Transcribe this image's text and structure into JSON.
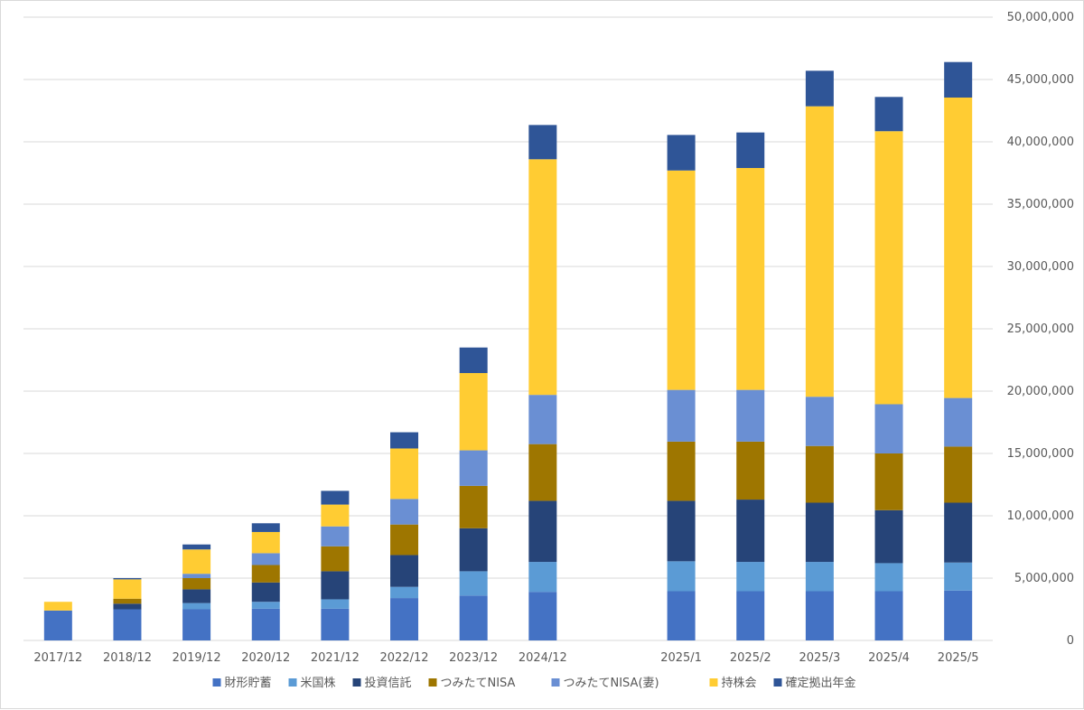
{
  "chart_data": {
    "type": "bar",
    "stacked": true,
    "categories": [
      "2017/12",
      "2018/12",
      "2019/12",
      "2020/12",
      "2021/12",
      "2022/12",
      "2023/12",
      "2024/12",
      "",
      "2025/1",
      "2025/2",
      "2025/3",
      "2025/4",
      "2025/5"
    ],
    "series": [
      {
        "name": "財形貯蓄",
        "color": "#4472C4",
        "values": [
          2400000,
          2500000,
          2500000,
          2550000,
          2550000,
          3400000,
          3600000,
          3900000,
          null,
          3950000,
          3950000,
          3950000,
          3950000,
          4000000
        ]
      },
      {
        "name": "米国株",
        "color": "#5B9BD5",
        "values": [
          0,
          0,
          500000,
          550000,
          750000,
          900000,
          1950000,
          2400000,
          null,
          2400000,
          2350000,
          2350000,
          2250000,
          2250000
        ]
      },
      {
        "name": "投資信託",
        "color": "#264478",
        "values": [
          0,
          450000,
          1100000,
          1550000,
          2250000,
          2550000,
          3450000,
          4900000,
          null,
          4850000,
          5000000,
          4750000,
          4250000,
          4800000
        ]
      },
      {
        "name": "つみたてNISA",
        "color": "#9E7600",
        "values": [
          0,
          400000,
          900000,
          1400000,
          2000000,
          2450000,
          3400000,
          4550000,
          null,
          4750000,
          4650000,
          4550000,
          4550000,
          4500000
        ]
      },
      {
        "name": "つみたてNISA(妻)",
        "color": "#6A8FD3",
        "values": [
          0,
          0,
          350000,
          950000,
          1600000,
          2050000,
          2850000,
          3950000,
          null,
          4150000,
          4150000,
          3950000,
          3950000,
          3900000
        ]
      },
      {
        "name": "持株会",
        "color": "#FFCC33",
        "values": [
          700000,
          1550000,
          1950000,
          1700000,
          1750000,
          4050000,
          6200000,
          18900000,
          null,
          17600000,
          17800000,
          23300000,
          21900000,
          24100000
        ]
      },
      {
        "name": "確定拠出年金",
        "color": "#2F5597",
        "values": [
          0,
          100000,
          400000,
          700000,
          1100000,
          1300000,
          2050000,
          2750000,
          null,
          2850000,
          2850000,
          2850000,
          2750000,
          2850000
        ]
      }
    ],
    "ylim": [
      0,
      50000000
    ],
    "yticks": [
      "0",
      "5,000,000",
      "10,000,000",
      "15,000,000",
      "20,000,000",
      "25,000,000",
      "30,000,000",
      "35,000,000",
      "40,000,000",
      "45,000,000",
      "50,000,000"
    ],
    "y_axis_side": "right",
    "grid": true,
    "legend_position": "bottom"
  }
}
